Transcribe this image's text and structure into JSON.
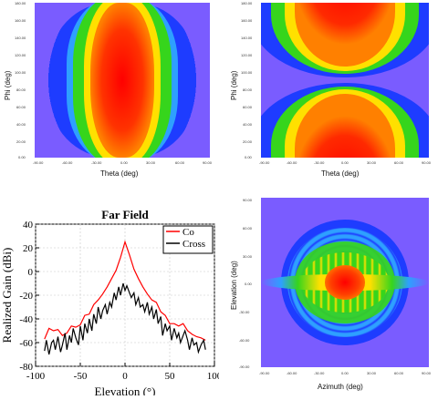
{
  "chart_data": [
    {
      "type": "heatmap",
      "panel": "top-left",
      "xlabel": "Theta (deg)",
      "ylabel": "Phi (deg)",
      "x_ticks": [
        "-90.00",
        "-60.00",
        "-30.00",
        "0.00",
        "30.00",
        "60.00",
        "90.00"
      ],
      "y_ticks": [
        "180.00",
        "160.00",
        "140.00",
        "120.00",
        "100.00",
        "80.00",
        "60.00",
        "40.00",
        "20.00",
        "0.00"
      ],
      "xlim": [
        -90,
        90
      ],
      "ylim": [
        0,
        180
      ],
      "colors": {
        "low": "#7a5cff",
        "mid_low": "#1e3cff",
        "mid": "#34d21c",
        "mid_high": "#ffe000",
        "high": "#ff0000"
      }
    },
    {
      "type": "heatmap",
      "panel": "top-right",
      "xlabel": "Theta (deg)",
      "ylabel": "Phi (deg)",
      "x_ticks": [
        "-90.00",
        "-60.00",
        "-30.00",
        "0.00",
        "30.00",
        "60.00",
        "90.00"
      ],
      "y_ticks": [
        "180.00",
        "160.00",
        "140.00",
        "120.00",
        "100.00",
        "80.00",
        "60.00",
        "40.00",
        "20.00",
        "0.00"
      ],
      "xlim": [
        -90,
        90
      ],
      "ylim": [
        0,
        180
      ]
    },
    {
      "type": "line",
      "panel": "bottom-left",
      "title": "Far Field",
      "xlabel": "Elevation (°)",
      "ylabel": "Realized Gain (dBi)",
      "xlim": [
        -100,
        100
      ],
      "ylim": [
        -80,
        40
      ],
      "x_ticks": [
        "-100",
        "-50",
        "0",
        "50",
        "100"
      ],
      "y_ticks": [
        "40",
        "20",
        "0",
        "-20",
        "-40",
        "-60",
        "-80"
      ],
      "grid": true,
      "legend_position": "top-right",
      "series": [
        {
          "name": "Co",
          "color": "#ff0000",
          "x": [
            -90,
            -85,
            -80,
            -75,
            -70,
            -65,
            -60,
            -55,
            -50,
            -45,
            -40,
            -35,
            -30,
            -25,
            -20,
            -15,
            -10,
            -5,
            0,
            5,
            10,
            15,
            20,
            25,
            30,
            35,
            40,
            45,
            50,
            55,
            60,
            65,
            70,
            75,
            80,
            85,
            90
          ],
          "values": [
            -57,
            -48,
            -50,
            -49,
            -54,
            -52,
            -46,
            -47,
            -45,
            -37,
            -36,
            -28,
            -24,
            -19,
            -13,
            -6,
            1,
            12,
            25,
            14,
            2,
            -6,
            -13,
            -19,
            -24,
            -26,
            -34,
            -37,
            -44,
            -44,
            -46,
            -44,
            -50,
            -53,
            -55,
            -56,
            -58
          ]
        },
        {
          "name": "Cross",
          "color": "#000000",
          "x": [
            -90,
            -88,
            -85,
            -82,
            -80,
            -78,
            -75,
            -72,
            -70,
            -67,
            -65,
            -62,
            -60,
            -58,
            -55,
            -52,
            -50,
            -47,
            -45,
            -42,
            -40,
            -37,
            -35,
            -32,
            -30,
            -27,
            -25,
            -22,
            -20,
            -17,
            -15,
            -12,
            -10,
            -7,
            -5,
            -2,
            0,
            2,
            5,
            7,
            10,
            12,
            15,
            17,
            20,
            22,
            25,
            27,
            30,
            32,
            35,
            37,
            40,
            42,
            45,
            47,
            50,
            52,
            55,
            58,
            60,
            62,
            65,
            67,
            70,
            72,
            75,
            77,
            80,
            82,
            85,
            88,
            90
          ],
          "values": [
            -67,
            -58,
            -70,
            -60,
            -58,
            -66,
            -55,
            -68,
            -62,
            -52,
            -66,
            -54,
            -60,
            -48,
            -56,
            -62,
            -46,
            -58,
            -44,
            -52,
            -40,
            -50,
            -36,
            -44,
            -30,
            -40,
            -33,
            -28,
            -36,
            -26,
            -30,
            -18,
            -24,
            -13,
            -20,
            -10,
            -16,
            -12,
            -18,
            -22,
            -18,
            -28,
            -22,
            -30,
            -28,
            -34,
            -26,
            -36,
            -30,
            -40,
            -32,
            -44,
            -38,
            -54,
            -44,
            -50,
            -46,
            -58,
            -48,
            -56,
            -52,
            -60,
            -54,
            -50,
            -58,
            -66,
            -56,
            -62,
            -60,
            -68,
            -62,
            -58,
            -66
          ]
        }
      ]
    },
    {
      "type": "heatmap",
      "panel": "bottom-right",
      "xlabel": "Azimuth (deg)",
      "ylabel": "Elevation (deg)",
      "x_ticks": [
        "-90.00",
        "-60.00",
        "-30.00",
        "0.00",
        "30.00",
        "60.00",
        "90.00"
      ],
      "y_ticks": [
        "90.00",
        "60.00",
        "30.00",
        "0.00",
        "-30.00",
        "-60.00",
        "-90.00"
      ],
      "xlim": [
        -90,
        90
      ],
      "ylim": [
        -90,
        90
      ]
    }
  ]
}
